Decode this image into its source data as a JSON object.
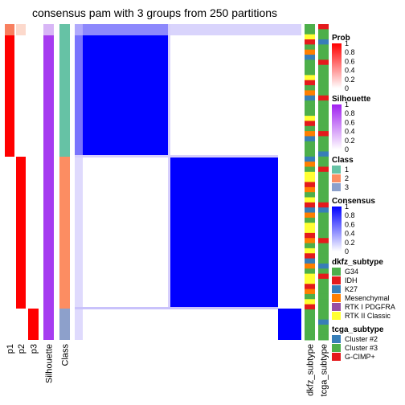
{
  "chart_data": {
    "type": "heatmap",
    "title": "consensus pam with 3 groups from 250 partitions",
    "annotation_columns": [
      "p1",
      "p2",
      "p3",
      "Silhouette",
      "Class"
    ],
    "side_columns": [
      "dkfz_subtype",
      "tcga_subtype"
    ],
    "groups": [
      {
        "class": 1,
        "fraction": 0.42,
        "prob": [
          1,
          0,
          0
        ],
        "silhouette": 0.95,
        "consensus_within": 1.0
      },
      {
        "class": 2,
        "fraction": 0.48,
        "prob": [
          0,
          1,
          0
        ],
        "silhouette": 0.95,
        "consensus_within": 1.0
      },
      {
        "class": 3,
        "fraction": 0.1,
        "prob": [
          0,
          0,
          1
        ],
        "silhouette": 0.95,
        "consensus_within": 1.0
      }
    ],
    "legends": [
      {
        "title": "Prob",
        "type": "gradient",
        "ticks": [
          "1",
          "0.8",
          "0.6",
          "0.4",
          "0.2",
          "0"
        ],
        "colors": [
          "#ff0000",
          "#ffffff"
        ]
      },
      {
        "title": "Silhouette",
        "type": "gradient",
        "ticks": [
          "1",
          "0.8",
          "0.6",
          "0.4",
          "0.2",
          "0"
        ],
        "colors": [
          "#a020f0",
          "#ffffff"
        ]
      },
      {
        "title": "Class",
        "type": "discrete",
        "items": [
          {
            "label": "1",
            "color": "#66c2a5"
          },
          {
            "label": "2",
            "color": "#fc8d62"
          },
          {
            "label": "3",
            "color": "#8da0cb"
          }
        ]
      },
      {
        "title": "Consensus",
        "type": "gradient",
        "ticks": [
          "1",
          "0.8",
          "0.6",
          "0.4",
          "0.2",
          "0"
        ],
        "colors": [
          "#0000ff",
          "#ffffff"
        ]
      },
      {
        "title": "dkfz_subtype",
        "type": "discrete",
        "items": [
          {
            "label": "G34",
            "color": "#4daf4a"
          },
          {
            "label": "IDH",
            "color": "#e41a1c"
          },
          {
            "label": "K27",
            "color": "#377eb8"
          },
          {
            "label": "Mesenchymal",
            "color": "#ff7f00"
          },
          {
            "label": "RTK I PDGFRA",
            "color": "#984ea3"
          },
          {
            "label": "RTK II Classic",
            "color": "#ffff33"
          }
        ]
      },
      {
        "title": "tcga_subtype",
        "type": "discrete",
        "items": [
          {
            "label": "Cluster #2",
            "color": "#377eb8"
          },
          {
            "label": "Cluster #3",
            "color": "#4daf4a"
          },
          {
            "label": "G-CIMP+",
            "color": "#e41a1c"
          }
        ]
      }
    ]
  }
}
